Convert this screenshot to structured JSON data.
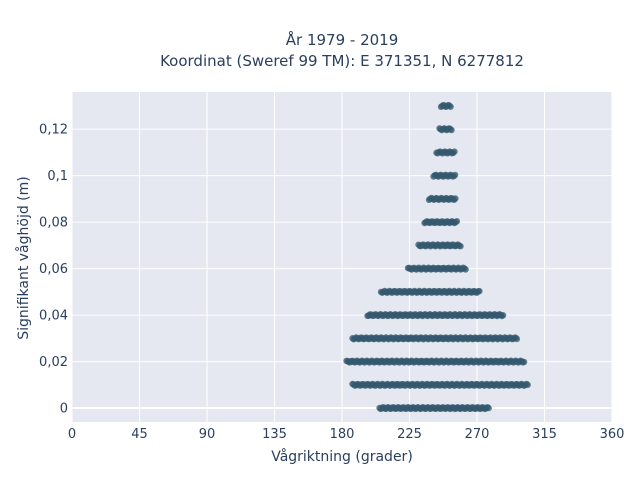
{
  "chart_data": {
    "type": "scatter",
    "title_line1": "År 1979 - 2019",
    "title_line2": "Koordinat (Sweref 99 TM): E 371351, N 6277812",
    "xlabel": "Vågriktning (grader)",
    "ylabel": "Signifikant våghöjd (m)",
    "xlim": [
      0,
      360
    ],
    "ylim": [
      -0.006,
      0.136
    ],
    "x_ticks": [
      0,
      45,
      90,
      135,
      180,
      225,
      270,
      315,
      360
    ],
    "x_tick_labels": [
      "0",
      "45",
      "90",
      "135",
      "180",
      "225",
      "270",
      "315",
      "360"
    ],
    "y_ticks": [
      0,
      0.02,
      0.04,
      0.06,
      0.08,
      0.1,
      0.12
    ],
    "y_tick_labels": [
      "0",
      "0,02",
      "0,04",
      "0,06",
      "0,08",
      "0,1",
      "0,12"
    ],
    "grid": true,
    "marker_color": "#34586e",
    "plot_bg": "#e5e8f0",
    "series": [
      {
        "points_note": "dense bands at discrete heights",
        "bands": [
          {
            "y": 0.0,
            "x_min": 205,
            "x_max": 278
          },
          {
            "y": 0.01,
            "x_min": 187,
            "x_max": 304
          },
          {
            "y": 0.02,
            "x_min": 183,
            "x_max": 302
          },
          {
            "y": 0.03,
            "x_min": 187,
            "x_max": 297
          },
          {
            "y": 0.04,
            "x_min": 197,
            "x_max": 288
          },
          {
            "y": 0.05,
            "x_min": 206,
            "x_max": 272
          },
          {
            "y": 0.06,
            "x_min": 224,
            "x_max": 263
          },
          {
            "y": 0.07,
            "x_min": 231,
            "x_max": 259
          },
          {
            "y": 0.08,
            "x_min": 235,
            "x_max": 257
          },
          {
            "y": 0.09,
            "x_min": 238,
            "x_max": 256
          },
          {
            "y": 0.1,
            "x_min": 241,
            "x_max": 256
          },
          {
            "y": 0.11,
            "x_min": 243,
            "x_max": 255
          },
          {
            "y": 0.12,
            "x_min": 245,
            "x_max": 253
          },
          {
            "y": 0.13,
            "x_min": 246,
            "x_max": 253
          }
        ]
      }
    ]
  }
}
